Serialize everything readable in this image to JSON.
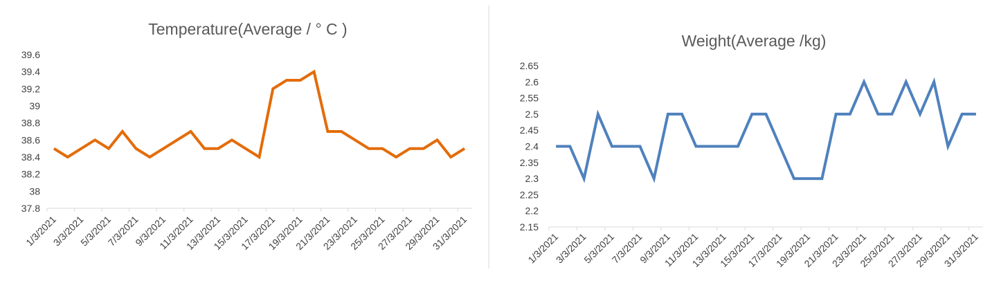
{
  "chart_data": [
    {
      "type": "line",
      "title": "Temperature(Average / ° C )",
      "xlabel": "",
      "ylabel": "",
      "ylim": [
        37.8,
        39.6
      ],
      "yticks": [
        "37.8",
        "38",
        "38.2",
        "38.4",
        "38.6",
        "38.8",
        "39",
        "39.2",
        "39.4",
        "39.6"
      ],
      "x_tick_labels": [
        "1/3/2021",
        "3/3/2021",
        "5/3/2021",
        "7/3/2021",
        "9/3/2021",
        "11/3/2021",
        "13/3/2021",
        "15/3/2021",
        "17/3/2021",
        "19/3/2021",
        "21/3/2021",
        "23/3/2021",
        "25/3/2021",
        "27/3/2021",
        "29/3/2021",
        "31/3/2021"
      ],
      "x": [
        "1/3/2021",
        "2/3/2021",
        "3/3/2021",
        "4/3/2021",
        "5/3/2021",
        "6/3/2021",
        "7/3/2021",
        "8/3/2021",
        "9/3/2021",
        "10/3/2021",
        "11/3/2021",
        "12/3/2021",
        "13/3/2021",
        "14/3/2021",
        "15/3/2021",
        "16/3/2021",
        "17/3/2021",
        "18/3/2021",
        "19/3/2021",
        "20/3/2021",
        "21/3/2021",
        "22/3/2021",
        "23/3/2021",
        "24/3/2021",
        "25/3/2021",
        "26/3/2021",
        "27/3/2021",
        "28/3/2021",
        "29/3/2021",
        "30/3/2021",
        "31/3/2021"
      ],
      "series": [
        {
          "color": "#e36c0a",
          "values": [
            38.5,
            38.4,
            38.5,
            38.6,
            38.5,
            38.7,
            38.5,
            38.4,
            38.5,
            38.6,
            38.7,
            38.5,
            38.5,
            38.6,
            38.5,
            38.4,
            39.2,
            39.3,
            39.3,
            39.4,
            38.7,
            38.7,
            38.6,
            38.5,
            38.5,
            38.4,
            38.5,
            38.5,
            38.6,
            38.4,
            38.5
          ]
        }
      ],
      "grid": false,
      "legend": "none"
    },
    {
      "type": "line",
      "title": "Weight(Average /kg)",
      "xlabel": "",
      "ylabel": "",
      "ylim": [
        2.15,
        2.65
      ],
      "yticks": [
        "2.15",
        "2.2",
        "2.25",
        "2.3",
        "2.35",
        "2.4",
        "2.45",
        "2.5",
        "2.55",
        "2.6",
        "2.65"
      ],
      "x_tick_labels": [
        "1/3/2021",
        "3/3/2021",
        "5/3/2021",
        "7/3/2021",
        "9/3/2021",
        "11/3/2021",
        "13/3/2021",
        "15/3/2021",
        "17/3/2021",
        "19/3/2021",
        "21/3/2021",
        "23/3/2021",
        "25/3/2021",
        "27/3/2021",
        "29/3/2021",
        "31/3/2021"
      ],
      "x": [
        "1/3/2021",
        "2/3/2021",
        "3/3/2021",
        "4/3/2021",
        "5/3/2021",
        "6/3/2021",
        "7/3/2021",
        "8/3/2021",
        "9/3/2021",
        "10/3/2021",
        "11/3/2021",
        "12/3/2021",
        "13/3/2021",
        "14/3/2021",
        "15/3/2021",
        "16/3/2021",
        "17/3/2021",
        "18/3/2021",
        "19/3/2021",
        "20/3/2021",
        "21/3/2021",
        "22/3/2021",
        "23/3/2021",
        "24/3/2021",
        "25/3/2021",
        "26/3/2021",
        "27/3/2021",
        "28/3/2021",
        "29/3/2021",
        "30/3/2021",
        "31/3/2021"
      ],
      "series": [
        {
          "color": "#4f81bd",
          "values": [
            2.4,
            2.4,
            2.3,
            2.5,
            2.4,
            2.4,
            2.4,
            2.3,
            2.5,
            2.5,
            2.4,
            2.4,
            2.4,
            2.4,
            2.5,
            2.5,
            2.4,
            2.3,
            2.3,
            2.3,
            2.5,
            2.5,
            2.6,
            2.5,
            2.5,
            2.6,
            2.5,
            2.6,
            2.4,
            2.5,
            2.5
          ]
        }
      ],
      "grid": false,
      "legend": "none"
    }
  ]
}
